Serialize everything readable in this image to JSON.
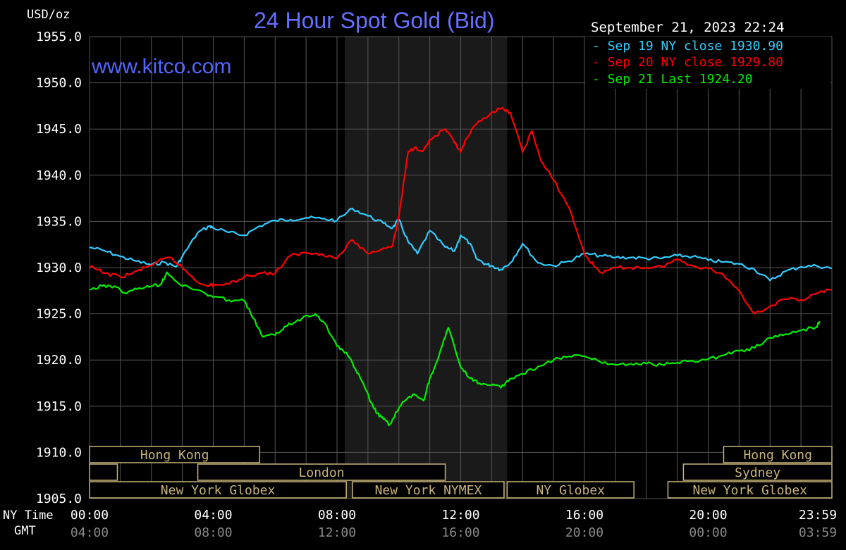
{
  "chart_data": {
    "type": "line",
    "title": "24 Hour Spot Gold (Bid)",
    "ylabel": "USD/oz",
    "watermark": "www.kitco.com",
    "timestamp": "September 21, 2023 22:24",
    "ylim": [
      1905,
      1955
    ],
    "y_ticks": [
      "1955.0",
      "1950.0",
      "1945.0",
      "1940.0",
      "1935.0",
      "1930.0",
      "1925.0",
      "1920.0",
      "1915.0",
      "1910.0",
      "1905.0"
    ],
    "xlim": [
      0,
      24
    ],
    "x_row_labels": {
      "ny": "NY Time",
      "gmt": "GMT"
    },
    "x_ticks_ny": [
      "00:00",
      "04:00",
      "08:00",
      "12:00",
      "16:00",
      "20:00",
      "23:59"
    ],
    "x_ticks_gmt": [
      "04:00",
      "08:00",
      "12:00",
      "16:00",
      "20:00",
      "00:00",
      "03:59"
    ],
    "shaded_region_hours": [
      8.25,
      13.5
    ],
    "series": [
      {
        "name": "Sep 19 NY close 1930.90",
        "color": "#33ccff",
        "x": [
          0,
          0.5,
          1,
          1.5,
          2,
          2.4,
          2.8,
          3,
          3.5,
          3.9,
          4,
          4.5,
          5,
          5.5,
          6,
          6.5,
          7,
          7.5,
          8,
          8.5,
          9,
          9.5,
          9.8,
          10,
          10.3,
          10.6,
          11,
          11.5,
          11.8,
          12,
          12.3,
          12.5,
          12.8,
          13,
          13.3,
          13.6,
          14,
          14.5,
          15,
          15.5,
          16,
          16.5,
          17,
          17.5,
          18,
          18.5,
          19,
          19.5,
          20,
          20.5,
          21,
          21.5,
          22,
          22.5,
          23,
          23.5,
          23.99
        ],
        "y": [
          1932.2,
          1931.8,
          1931.2,
          1930.7,
          1930.3,
          1930.6,
          1930.1,
          1931.2,
          1933.8,
          1934.5,
          1934.3,
          1933.8,
          1933.5,
          1934.5,
          1935.1,
          1935.2,
          1935.4,
          1935.3,
          1935.1,
          1936.4,
          1935.6,
          1934.8,
          1934.3,
          1935.2,
          1932.8,
          1931.5,
          1934,
          1932.2,
          1931.8,
          1933.5,
          1932.6,
          1931,
          1930.4,
          1930.2,
          1929.8,
          1930.5,
          1932.6,
          1930.5,
          1930.2,
          1930.7,
          1931.5,
          1931.3,
          1931.1,
          1931.1,
          1931,
          1931,
          1931.3,
          1931.2,
          1930.8,
          1930.6,
          1930.4,
          1929.8,
          1928.6,
          1929.6,
          1930.1,
          1930.2,
          1929.9
        ]
      },
      {
        "name": "Sep 20 NY close 1929.80",
        "color": "#ff0000",
        "x": [
          0,
          0.5,
          1,
          1.4,
          1.8,
          2.2,
          2.6,
          3,
          3.5,
          3.9,
          4,
          4.5,
          5,
          5.5,
          6,
          6.5,
          7,
          7.5,
          8,
          8.5,
          9,
          9.5,
          9.8,
          10,
          10.3,
          10.5,
          10.8,
          11,
          11.5,
          11.8,
          12,
          12.2,
          12.5,
          13,
          13.3,
          13.6,
          14,
          14.3,
          14.6,
          15,
          15.5,
          16,
          16.3,
          16.6,
          17,
          17.5,
          18,
          18.5,
          19,
          19.5,
          20,
          20.5,
          21,
          21.5,
          22,
          22.5,
          23,
          23.5,
          23.99
        ],
        "y": [
          1930.1,
          1929.4,
          1929,
          1929.4,
          1930,
          1930.6,
          1931.1,
          1930,
          1928.4,
          1928.1,
          1928.1,
          1928.2,
          1929,
          1929.4,
          1929.4,
          1931.3,
          1931.6,
          1931.5,
          1931,
          1933,
          1931.5,
          1932.1,
          1932.4,
          1935.5,
          1942.5,
          1943,
          1942.7,
          1943.8,
          1945,
          1943.5,
          1942.5,
          1944,
          1945.5,
          1946.8,
          1947.2,
          1946.8,
          1942.5,
          1944.8,
          1941.5,
          1939.5,
          1936.5,
          1931.5,
          1930.2,
          1929.4,
          1930,
          1930,
          1930,
          1930.1,
          1930.9,
          1930.2,
          1929.9,
          1929.2,
          1927.5,
          1925,
          1925.8,
          1926.6,
          1926.5,
          1927.2,
          1927.6
        ]
      },
      {
        "name": "Sep 21 Last 1924.20",
        "color": "#00ee00",
        "x": [
          0,
          0.4,
          0.8,
          1.2,
          1.6,
          2,
          2.3,
          2.5,
          3,
          3.5,
          4,
          4.5,
          5,
          5.3,
          5.6,
          6,
          6.3,
          6.6,
          7,
          7.3,
          7.6,
          8,
          8.3,
          8.6,
          8.9,
          9.1,
          9.3,
          9.5,
          9.7,
          10,
          10.2,
          10.5,
          10.8,
          11,
          11.3,
          11.6,
          12,
          12.3,
          12.6,
          13,
          13.3,
          13.6,
          14,
          14.5,
          15,
          15.5,
          16,
          16.5,
          17,
          17.5,
          18,
          18.5,
          19,
          19.5,
          20,
          20.5,
          21,
          21.5,
          22,
          22.5,
          23,
          23.5,
          23.6
        ],
        "y": [
          1927.6,
          1928,
          1928,
          1927.2,
          1927.8,
          1928,
          1928.2,
          1929.5,
          1928,
          1927.6,
          1926.8,
          1926.5,
          1926.4,
          1924.5,
          1922.5,
          1922.7,
          1923.6,
          1924,
          1924.8,
          1925,
          1924,
          1921.5,
          1920.8,
          1919,
          1917,
          1915.4,
          1914.2,
          1913.6,
          1913,
          1914.8,
          1915.6,
          1916.3,
          1915.6,
          1918,
          1920.5,
          1923.5,
          1919.2,
          1918,
          1917.5,
          1917.3,
          1917,
          1918,
          1918.5,
          1919.3,
          1920,
          1920.4,
          1920.4,
          1919.8,
          1919.5,
          1919.6,
          1919.6,
          1919.5,
          1919.7,
          1919.9,
          1920.1,
          1920.5,
          1921,
          1921.3,
          1922.4,
          1922.8,
          1923.2,
          1923.6,
          1924.2
        ]
      }
    ]
  },
  "sessions": [
    {
      "label": "Hong Kong",
      "row": 0,
      "start": 0,
      "end": 5.5
    },
    {
      "label": "",
      "row": 1,
      "start": 0,
      "end": 0.9
    },
    {
      "label": "London",
      "row": 1,
      "start": 3.5,
      "end": 11.5
    },
    {
      "label": "New York Globex",
      "row": 2,
      "start": 0,
      "end": 8.3
    },
    {
      "label": "New York NYMEX",
      "row": 2,
      "start": 8.5,
      "end": 13.4
    },
    {
      "label": "NY Globex",
      "row": 2,
      "start": 13.5,
      "end": 17.6
    },
    {
      "label": "Hong Kong",
      "row": 0,
      "start": 20.5,
      "end": 24
    },
    {
      "label": "Sydney",
      "row": 1,
      "start": 19.2,
      "end": 24
    },
    {
      "label": "New York Globex",
      "row": 2,
      "start": 18.7,
      "end": 24
    }
  ],
  "colors": {
    "background": "#000000",
    "grid": "#555555",
    "title": "#6670ff",
    "watermark": "#5566ff",
    "session": "#c8b478",
    "shade": "#1a1a1a",
    "axis_text": "#ffffff",
    "gmt_text": "#8a8a8a"
  }
}
